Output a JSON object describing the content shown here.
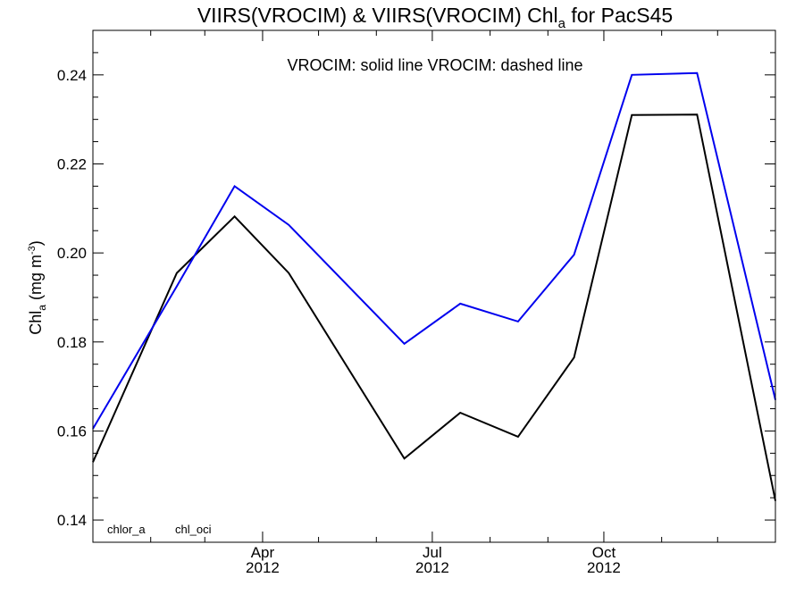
{
  "chart_data": {
    "type": "line",
    "title": {
      "prefix": "VIIRS(VROCIM) & VIIRS(VROCIM)  Chl",
      "subscript": "a",
      "suffix": " for PacS45"
    },
    "annotation": "VROCIM: solid line   VROCIM: dashed line",
    "ylabel": {
      "prefix": "Chl",
      "subscript": "a",
      "middle": " (mg m",
      "superscript": "-3",
      "suffix": ")"
    },
    "ylim": [
      0.135,
      0.25
    ],
    "yticks": [
      {
        "value": 0.14,
        "label": "0.14"
      },
      {
        "value": 0.16,
        "label": "0.16"
      },
      {
        "value": 0.18,
        "label": "0.18"
      },
      {
        "value": 0.2,
        "label": "0.20"
      },
      {
        "value": 0.22,
        "label": "0.22"
      },
      {
        "value": 0.24,
        "label": "0.24"
      }
    ],
    "xlim": [
      "2012-01-01",
      "2013-01-01"
    ],
    "xticks": [
      {
        "date": "2012-04-01",
        "label": "Apr",
        "year": "2012"
      },
      {
        "date": "2012-07-01",
        "label": "Jul",
        "year": "2012"
      },
      {
        "date": "2012-10-01",
        "label": "Oct",
        "year": "2012"
      }
    ],
    "x_minor_ticks": [
      "2012-02-01",
      "2012-03-01",
      "2012-05-01",
      "2012-06-01",
      "2012-08-01",
      "2012-09-01",
      "2012-11-01",
      "2012-12-01"
    ],
    "grid": false,
    "legend_position": "bottom-left",
    "series": [
      {
        "name": "chlor_a",
        "color": "#000000",
        "points": [
          {
            "x": "2012-01-01",
            "y": 0.153
          },
          {
            "x": "2012-02-15",
            "y": 0.1955
          },
          {
            "x": "2012-03-17",
            "y": 0.2082
          },
          {
            "x": "2012-04-15",
            "y": 0.1955
          },
          {
            "x": "2012-06-16",
            "y": 0.1538
          },
          {
            "x": "2012-07-16",
            "y": 0.1641
          },
          {
            "x": "2012-08-16",
            "y": 0.1587
          },
          {
            "x": "2012-09-15",
            "y": 0.1765
          },
          {
            "x": "2012-10-16",
            "y": 0.231
          },
          {
            "x": "2012-11-20",
            "y": 0.2311
          },
          {
            "x": "2013-01-01",
            "y": 0.1443
          }
        ]
      },
      {
        "name": "chl_oci",
        "color": "#0000ee",
        "points": [
          {
            "x": "2012-01-01",
            "y": 0.1605
          },
          {
            "x": "2012-02-15",
            "y": 0.1925
          },
          {
            "x": "2012-03-17",
            "y": 0.215
          },
          {
            "x": "2012-04-15",
            "y": 0.2063
          },
          {
            "x": "2012-06-16",
            "y": 0.1796
          },
          {
            "x": "2012-07-16",
            "y": 0.1886
          },
          {
            "x": "2012-08-16",
            "y": 0.1846
          },
          {
            "x": "2012-09-15",
            "y": 0.1996
          },
          {
            "x": "2012-10-16",
            "y": 0.24
          },
          {
            "x": "2012-11-20",
            "y": 0.2404
          },
          {
            "x": "2013-01-01",
            "y": 0.167
          }
        ]
      }
    ]
  }
}
